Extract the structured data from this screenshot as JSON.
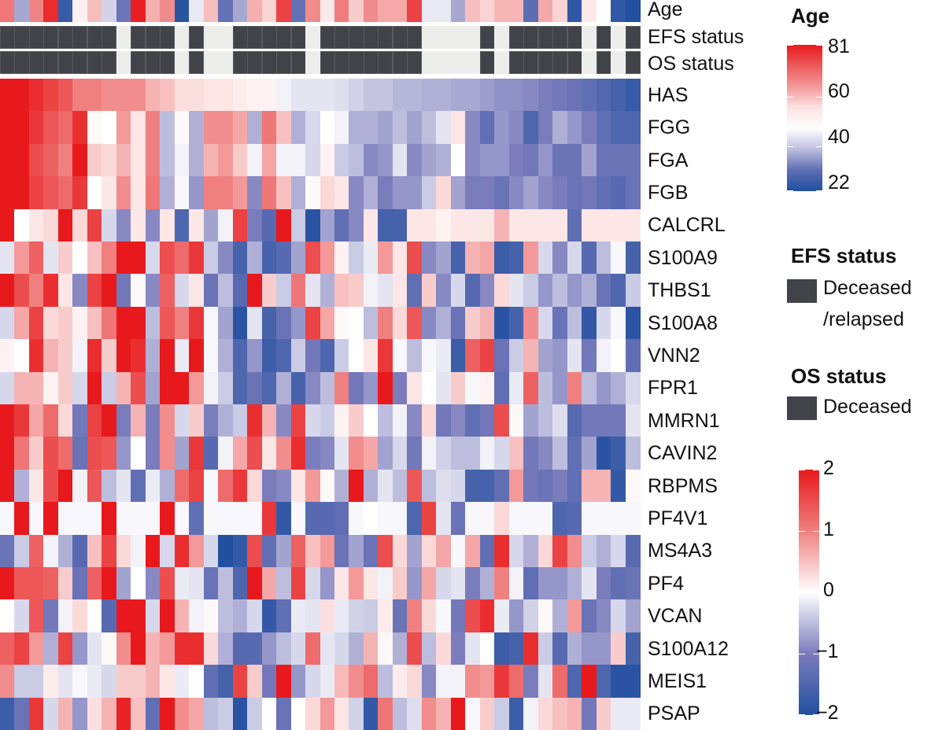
{
  "chart_data": {
    "type": "heatmap",
    "annotation_rows": [
      "Age",
      "EFS status",
      "OS status"
    ],
    "rows": [
      "HAS",
      "FGG",
      "FGA",
      "FGB",
      "CALCRL",
      "S100A9",
      "THBS1",
      "S100A8",
      "VNN2",
      "FPR1",
      "MMRN1",
      "CAVIN2",
      "RBPMS",
      "PF4V1",
      "MS4A3",
      "PF4",
      "VCAN",
      "S100A12",
      "MEIS1",
      "PSAP"
    ],
    "n_samples": 44,
    "age": [
      65,
      38,
      63,
      78,
      25,
      48,
      55,
      42,
      32,
      80,
      57,
      62,
      23,
      44,
      55,
      31,
      38,
      57,
      52,
      74,
      31,
      62,
      49,
      64,
      53,
      62,
      58,
      58,
      74,
      44,
      44,
      38,
      55,
      52,
      56,
      56,
      30,
      58,
      52,
      24,
      49,
      46,
      24,
      22
    ],
    "efs_status": [
      1,
      1,
      1,
      1,
      1,
      1,
      1,
      1,
      0,
      1,
      1,
      1,
      0,
      1,
      0,
      0,
      1,
      1,
      1,
      1,
      1,
      0,
      1,
      1,
      1,
      1,
      1,
      1,
      1,
      0,
      0,
      0,
      0,
      1,
      0,
      1,
      1,
      1,
      1,
      1,
      0,
      1,
      0,
      1
    ],
    "os_status": [
      1,
      1,
      1,
      1,
      1,
      1,
      1,
      1,
      0,
      1,
      1,
      1,
      0,
      1,
      0,
      0,
      1,
      1,
      1,
      1,
      1,
      0,
      1,
      1,
      1,
      1,
      1,
      1,
      1,
      0,
      0,
      0,
      0,
      1,
      0,
      1,
      1,
      1,
      1,
      1,
      0,
      1,
      0,
      1
    ],
    "values": [
      [
        2,
        2,
        1.8,
        1.6,
        1.4,
        1.0,
        1.0,
        0.9,
        0.9,
        0.9,
        0.6,
        0.5,
        0.25,
        0.25,
        0.2,
        0.2,
        0.15,
        0.1,
        0.1,
        -0.1,
        -0.2,
        -0.2,
        -0.2,
        -0.25,
        -0.35,
        -0.45,
        -0.45,
        -0.55,
        -0.55,
        -0.6,
        -0.6,
        -0.65,
        -0.65,
        -0.75,
        -0.85,
        -0.85,
        -0.9,
        -1.0,
        -1.1,
        -1.2,
        -1.3,
        -1.45,
        -1.6,
        -1.75
      ],
      [
        2,
        2,
        1.7,
        1.4,
        1.2,
        1.8,
        0.05,
        0,
        0.8,
        0.2,
        1.0,
        -0.5,
        0.05,
        -0.6,
        0.9,
        0.9,
        0.7,
        -0.6,
        1.1,
        0.5,
        -0.6,
        -0.3,
        0,
        -0.1,
        -0.6,
        -0.6,
        -0.7,
        -0.5,
        -0.7,
        -0.5,
        -0.2,
        0.2,
        -0.9,
        -1.3,
        -0.8,
        -0.9,
        -1.5,
        -1.0,
        -0.6,
        -0.8,
        -1.0,
        -1.3,
        -1.5,
        -1.5
      ],
      [
        2,
        2,
        1.5,
        1.3,
        1.0,
        2,
        0.4,
        0.3,
        0.6,
        0.2,
        1.0,
        -0.5,
        -0.1,
        -0.6,
        0.6,
        0.8,
        0.4,
        -0.1,
        0.7,
        -0.1,
        -0.1,
        -0.3,
        0.1,
        -0.4,
        -0.5,
        -0.9,
        -0.8,
        -0.2,
        -0.9,
        -0.7,
        -0.6,
        0,
        -0.9,
        -0.8,
        -0.8,
        -1.0,
        -1.1,
        -0.8,
        -1.2,
        -1.2,
        -0.7,
        -1.2,
        -1.2,
        -1.2
      ],
      [
        2,
        2,
        1.6,
        1.4,
        1.2,
        1.7,
        0,
        0.2,
        0.9,
        0.2,
        1.1,
        -0.6,
        -0.05,
        -0.8,
        1.0,
        1.0,
        0.8,
        -0.9,
        1.1,
        0.5,
        -0.6,
        0.05,
        0.3,
        0.2,
        -0.9,
        -0.6,
        -1.0,
        -0.8,
        -0.8,
        -0.4,
        0.3,
        -0.7,
        -1.0,
        -1.0,
        -1.2,
        -0.9,
        -0.7,
        -0.9,
        -1.0,
        -1.2,
        -1.1,
        -1.3,
        -1.4,
        -1.2
      ],
      [
        2,
        0,
        0.2,
        0.3,
        2,
        0.3,
        1.6,
        -0.3,
        -0.9,
        0.2,
        -0.9,
        0.2,
        -1.5,
        0.2,
        -0.7,
        -0.1,
        1.6,
        -1.0,
        -1.4,
        2,
        -0.4,
        -1.9,
        -0.7,
        -1.3,
        -0.9,
        0.2,
        -1.6,
        -1.6,
        0.2,
        0.2,
        0.1,
        0.2,
        0.2,
        0.2,
        0.6,
        0.2,
        0.2,
        0.2,
        0.2,
        -1.3,
        0.2,
        0.2,
        0.2,
        0.2
      ],
      [
        -0.2,
        0.8,
        1.3,
        -0.2,
        0.4,
        0,
        0.5,
        1.0,
        2,
        2,
        -0.3,
        1.5,
        1.2,
        1.7,
        -0.4,
        -0.9,
        -1.6,
        -0.6,
        -1.6,
        -1.4,
        -0.7,
        1.5,
        0.8,
        0.1,
        -0.4,
        -0.15,
        0.8,
        0.2,
        1.5,
        -0.9,
        -0.7,
        -1.6,
        0.6,
        0.7,
        -1.7,
        -1.6,
        0.8,
        -0.3,
        -0.9,
        -0.3,
        -1.4,
        -0.5,
        -0.05,
        -1.6
      ],
      [
        2,
        1.5,
        1.0,
        1.8,
        0.2,
        -0.9,
        1.6,
        2,
        -1.1,
        0.05,
        -0.9,
        1.3,
        -0.3,
        0.2,
        -1.2,
        -0.5,
        -1.4,
        2,
        0.4,
        -0.4,
        1.1,
        -0.2,
        -0.6,
        0.5,
        0.4,
        -0.1,
        -0.2,
        0.2,
        -1.3,
        0.4,
        -0.9,
        -0.3,
        -1.4,
        -0.9,
        0.3,
        -0.2,
        -0.4,
        -0.8,
        -0.5,
        -0.8,
        -0.6,
        -1.2,
        -1.5,
        -0.4
      ],
      [
        -0.3,
        0.7,
        1.6,
        0.3,
        0.4,
        0.1,
        0.5,
        1.1,
        2,
        2,
        -0.5,
        1.4,
        1.0,
        1.7,
        -0.05,
        -0.7,
        -1.9,
        -0.2,
        -1.6,
        -1.2,
        -0.8,
        1.6,
        0.7,
        0.05,
        0,
        -0.5,
        1.0,
        0.3,
        1.4,
        -0.9,
        -0.6,
        -1.2,
        0.4,
        0.6,
        -1.9,
        -1.6,
        0.9,
        -0.3,
        -1.2,
        -0.5,
        -1.8,
        -0.3,
        -0.05,
        -1.9
      ],
      [
        0.1,
        0,
        1.8,
        0.6,
        0.4,
        -0.1,
        1.8,
        0.4,
        2,
        1.8,
        -0.6,
        2,
        -0.15,
        2,
        -0.05,
        -0.6,
        -1.5,
        -0.8,
        -1.7,
        -1.5,
        -0.4,
        -1.1,
        -1.5,
        -0.4,
        0,
        0.2,
        1.7,
        -0.05,
        -0.5,
        -0.05,
        -0.15,
        -1.7,
        1.3,
        1.6,
        -1.2,
        -0.4,
        0.6,
        -0.7,
        -0.8,
        -0.2,
        -1.1,
        -0.1,
        0,
        -1.3
      ],
      [
        -0.3,
        0.6,
        0.6,
        0.1,
        0.4,
        -0.3,
        2,
        -0.4,
        0.6,
        1.5,
        -0.7,
        2,
        2,
        0.8,
        -0.1,
        -0.4,
        -1.5,
        -1.2,
        -1.5,
        -0.6,
        -1.6,
        -0.9,
        -0.5,
        1.0,
        -1.1,
        -0.8,
        2,
        -1.0,
        0.2,
        0,
        -0.2,
        0.4,
        -0.05,
        0.1,
        -1.3,
        -0.15,
        1.3,
        -0.5,
        -0.8,
        1.0,
        -0.5,
        -0.8,
        -0.6,
        -0.3
      ],
      [
        2,
        1.7,
        0.7,
        1.2,
        0.3,
        -1.1,
        1.6,
        2,
        -1.0,
        0.6,
        -1.0,
        0.9,
        -0.3,
        0.4,
        -1.0,
        -0.6,
        -0.4,
        1.8,
        0.6,
        -0.9,
        1.6,
        -0.3,
        -0.4,
        0.1,
        0.4,
        0,
        -0.5,
        -0.1,
        -0.9,
        0.3,
        -1.1,
        -0.9,
        -1.3,
        -1.1,
        1.5,
        0.05,
        -0.7,
        -0.5,
        -0.25,
        -1.4,
        -1.1,
        -1.1,
        -1.1,
        -0.2
      ],
      [
        2,
        1.1,
        0.4,
        1.5,
        1.2,
        -1.2,
        1.5,
        1.4,
        -0.8,
        0,
        -1.0,
        0.9,
        -0.7,
        1.7,
        -1.4,
        -0.1,
        0.7,
        1.5,
        0.2,
        0.9,
        1.8,
        -1.0,
        -0.9,
        -0.2,
        0.9,
        0.7,
        -0.7,
        -0.3,
        -1.1,
        -0.1,
        -0.35,
        -0.5,
        -0.5,
        -0.1,
        -0.3,
        0.5,
        -1.1,
        -0.9,
        -0.5,
        -1.3,
        -0.7,
        -1.9,
        -1.7,
        -0.5
      ],
      [
        2,
        -0.6,
        0.2,
        1.5,
        2,
        -0.1,
        1.4,
        -0.5,
        -0.2,
        -1.3,
        -0.15,
        -0.6,
        1.2,
        1.6,
        -0.05,
        1.2,
        1.7,
        0.3,
        -1.0,
        -0.9,
        0.2,
        0.8,
        0.05,
        -0.6,
        2,
        -0.6,
        -0.2,
        -0.5,
        1.4,
        -0.5,
        -0.25,
        -0.3,
        -1.6,
        -1.6,
        -1.3,
        0.8,
        -1.1,
        -1.2,
        -1.0,
        -1.3,
        0.6,
        0.6,
        -1.8,
        0.05
      ],
      [
        -0.05,
        2,
        -0.05,
        2,
        -0.05,
        -0.05,
        -0.05,
        2,
        -0.05,
        -0.05,
        -0.05,
        2,
        -0.05,
        -1.3,
        -0.05,
        -0.05,
        -0.05,
        -0.05,
        1.7,
        -1.8,
        -0.05,
        -1.4,
        -1.4,
        -1.3,
        -0.05,
        0,
        -0.05,
        -0.05,
        -1.5,
        1.6,
        -0.2,
        -1.2,
        -0.05,
        -0.05,
        0.3,
        -0.05,
        -0.05,
        -0.05,
        -1.5,
        -1.4,
        -0.05,
        -0.05,
        -0.05,
        -0.05
      ],
      [
        -1.2,
        -0.4,
        1.3,
        -0.1,
        -0.6,
        -1.4,
        0.5,
        1.6,
        0.3,
        -0.1,
        2,
        -0.3,
        1.8,
        0.8,
        -0.3,
        -2,
        -1.8,
        1.5,
        -1.3,
        -0.7,
        1.3,
        0.5,
        0.8,
        -1.2,
        -0.7,
        -1.2,
        1.5,
        0.3,
        -0.7,
        0.3,
        0.7,
        -0.05,
        0.7,
        -1.3,
        1.8,
        -0.3,
        -0.6,
        0.3,
        1.6,
        0.9,
        -0.4,
        -0.6,
        -0.3,
        -1.4
      ],
      [
        2,
        1.4,
        1.4,
        1.3,
        0.4,
        -1.2,
        1.3,
        2,
        -0.7,
        0,
        -0.9,
        1.5,
        -0.15,
        -0.2,
        -1.2,
        -0.5,
        -1.5,
        2,
        0.7,
        -0.5,
        1.6,
        -0.3,
        -0.8,
        0.2,
        0.8,
        0.2,
        -0.1,
        0.4,
        -0.8,
        0.7,
        -0.3,
        -0.2,
        -1.0,
        -0.6,
        1.0,
        -0.1,
        -1.3,
        -0.8,
        -0.8,
        -0.6,
        -0.2,
        -1.0,
        -1.3,
        -1.2
      ],
      [
        0,
        -0.3,
        1.4,
        -1.1,
        -0.1,
        0.3,
        0,
        -1.4,
        2,
        2,
        -0.3,
        2,
        0.6,
        -0.1,
        0.05,
        -0.5,
        -0.6,
        -0.3,
        -1.8,
        -1.3,
        -0.15,
        -0.2,
        0.25,
        -0.15,
        -0.35,
        -0.4,
        0.15,
        -1.2,
        1.0,
        0.3,
        -0.05,
        -1.1,
        1.5,
        1.8,
        -0.15,
        -0.8,
        -0.35,
        0.05,
        -0.6,
        0.8,
        -1.2,
        -0.9,
        -0.3,
        -0.7
      ],
      [
        1.3,
        1.6,
        0.8,
        -0.6,
        1.6,
        -0.8,
        -0.2,
        0.05,
        0.9,
        2,
        0.6,
        0.8,
        1.8,
        1.8,
        0.3,
        -0.6,
        -1.4,
        -1.4,
        -0.8,
        -0.5,
        -0.3,
        1.2,
        -0.2,
        -0.3,
        -0.6,
        0.6,
        0.05,
        -0.6,
        1.5,
        -0.5,
        0.3,
        -1.0,
        -0.2,
        0,
        -1.7,
        -1.6,
        1.8,
        -0.4,
        -1.4,
        -0.6,
        -0.8,
        -0.8,
        0.4,
        -1.6
      ],
      [
        0.9,
        -0.4,
        -0.4,
        0.15,
        -0.2,
        -0.05,
        -0.15,
        -0.3,
        0.4,
        0.4,
        0.6,
        0.2,
        -0.15,
        0,
        -1.3,
        -1.6,
        1.6,
        0.4,
        -1.1,
        2,
        -0.8,
        -0.3,
        -0.15,
        0.55,
        0.9,
        1.2,
        -0.5,
        0.15,
        0.3,
        -0.9,
        -0.1,
        -0.1,
        0.9,
        0.8,
        1.7,
        1.2,
        -1.0,
        -0.2,
        1.2,
        -1.5,
        2,
        -1.5,
        -1.9,
        -1.9
      ],
      [
        -1.7,
        -1.2,
        1.7,
        -0.3,
        0.6,
        -0.8,
        0.25,
        0.6,
        1.9,
        0.5,
        -1.3,
        2,
        0.9,
        0.7,
        -0.5,
        -0.4,
        -1.9,
        -0.4,
        0,
        -1.2,
        0,
        0.3,
        0.8,
        0.2,
        -0.35,
        -1.8,
        1.1,
        -0.5,
        -0.25,
        0.9,
        0.6,
        2,
        -0.05,
        0.4,
        -0.4,
        -1.7,
        -0.1,
        0.3,
        0.5,
        0.6,
        -1.1,
        0.4,
        -0.15,
        -0.15
      ]
    ],
    "colorscale": {
      "min": -2,
      "max": 2,
      "low": "#2150a0",
      "mid": "#ffffff",
      "high": "#e8191c"
    },
    "age_range": [
      22,
      81
    ],
    "status_colors": {
      "deceased": "#424348",
      "other": "#ededeb"
    }
  },
  "legend": {
    "age": {
      "title": "Age",
      "ticks": [
        "81",
        "60",
        "40",
        "22"
      ]
    },
    "efs": {
      "title": "EFS status",
      "item_line1": "Deceased",
      "item_line2": "/relapsed"
    },
    "os": {
      "title": "OS status",
      "item": "Deceased"
    },
    "expression": {
      "ticks": [
        "2",
        "1",
        "0",
        "−1",
        "−2"
      ]
    }
  }
}
